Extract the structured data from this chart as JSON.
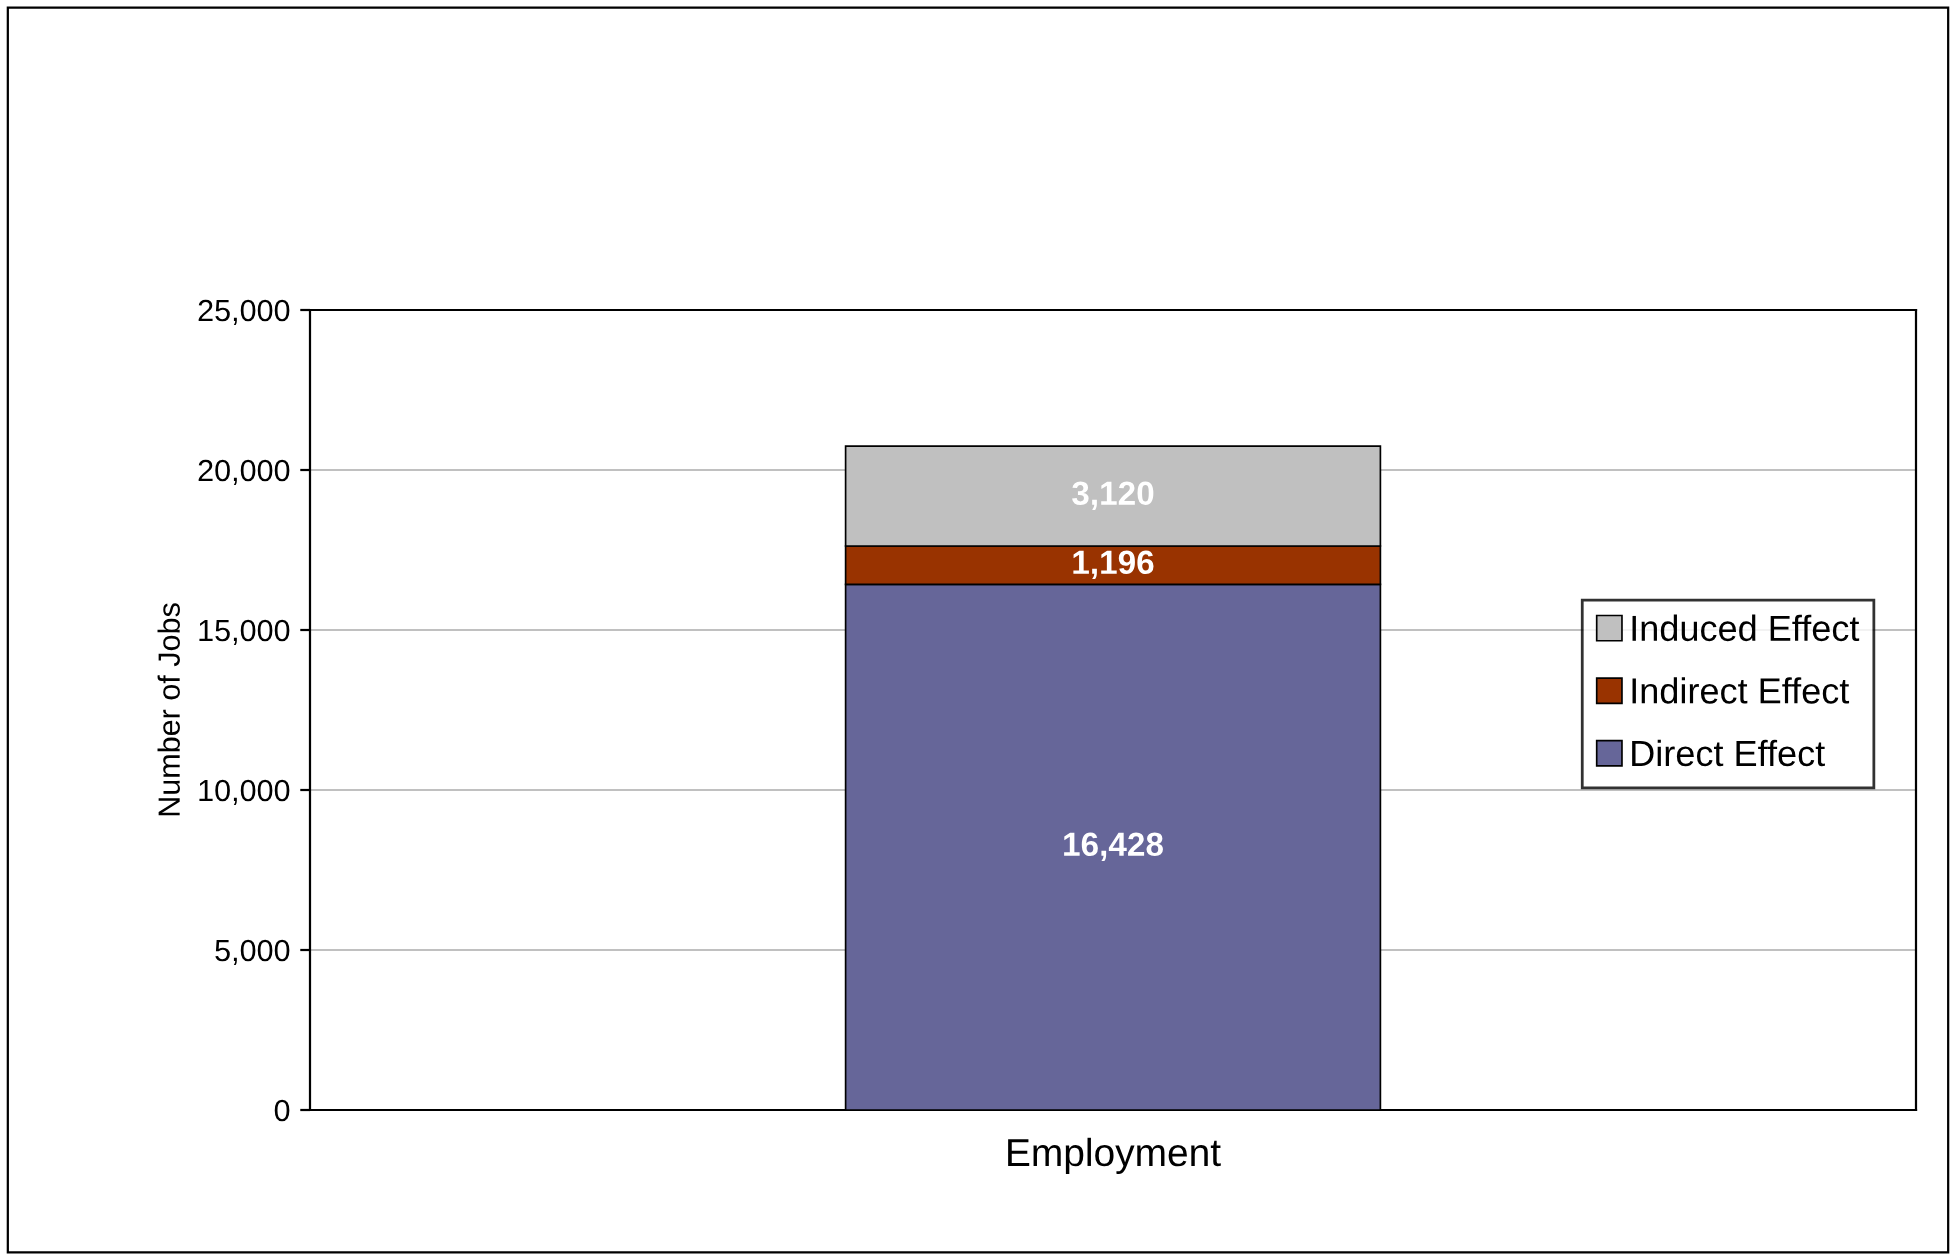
{
  "chart_data": {
    "type": "bar",
    "stacked": true,
    "categories": [
      "Employment"
    ],
    "ylabel": "Number of Jobs",
    "series": [
      {
        "name": "Direct Effect",
        "color": "#666699",
        "values": [
          16428
        ],
        "value_labels": [
          "16,428"
        ]
      },
      {
        "name": "Indirect Effect",
        "color": "#993300",
        "values": [
          1196
        ],
        "value_labels": [
          "1,196"
        ]
      },
      {
        "name": "Induced Effect",
        "color": "#c0c0c0",
        "values": [
          3120
        ],
        "value_labels": [
          "3,120"
        ]
      }
    ],
    "ylim": [
      0,
      25000
    ],
    "yticks": [
      {
        "value": 0,
        "label": "0"
      },
      {
        "value": 5000,
        "label": "5,000"
      },
      {
        "value": 10000,
        "label": "10,000"
      },
      {
        "value": 15000,
        "label": "15,000"
      },
      {
        "value": 20000,
        "label": "20,000"
      },
      {
        "value": 25000,
        "label": "25,000"
      }
    ],
    "grid": "y",
    "legend": "right"
  }
}
